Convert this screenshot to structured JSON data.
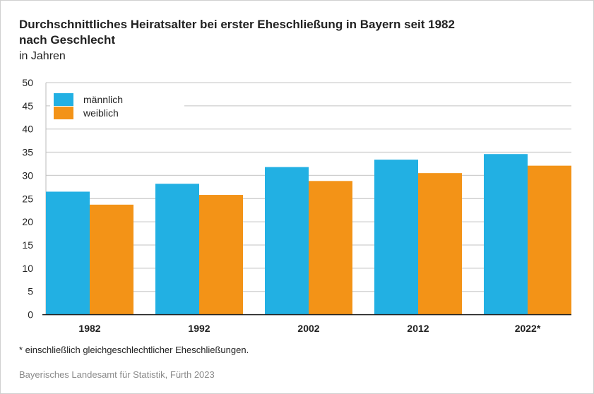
{
  "chart_data": {
    "type": "bar",
    "title": "Durchschnittliches Heiratsalter bei erster Eheschließung in Bayern seit 1982",
    "title_line2": "nach Geschlecht",
    "subtitle": "in Jahren",
    "categories": [
      "1982",
      "1992",
      "2002",
      "2012",
      "2022*"
    ],
    "series": [
      {
        "name": "männlich",
        "color": "#22b0e3",
        "values": [
          26.5,
          28.2,
          31.8,
          33.4,
          34.6
        ]
      },
      {
        "name": "weiblich",
        "color": "#f39317",
        "values": [
          23.7,
          25.8,
          28.8,
          30.5,
          32.1
        ]
      }
    ],
    "ylim": [
      0,
      50
    ],
    "yticks": [
      0,
      5,
      10,
      15,
      20,
      25,
      30,
      35,
      40,
      45,
      50
    ],
    "grid": true,
    "legend": "top-left",
    "footnote": "* einschließlich gleichgeschlechtlicher Eheschließungen.",
    "source": "Bayerisches Landesamt für Statistik, Fürth 2023"
  }
}
